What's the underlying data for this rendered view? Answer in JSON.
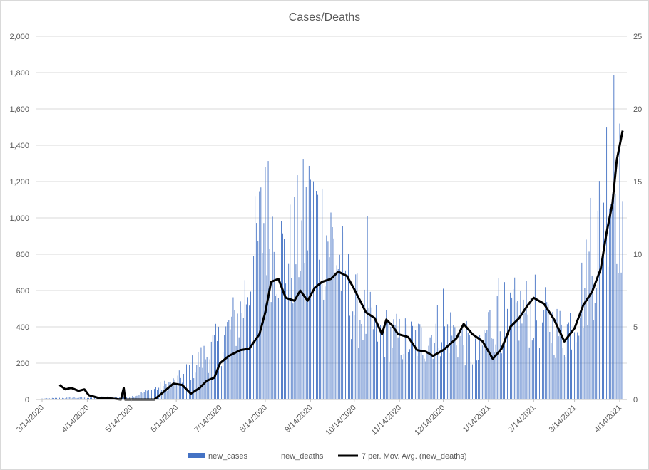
{
  "chart_data": {
    "type": "bar",
    "title": "Cases/Deaths",
    "grid": true,
    "legend_position": "bottom",
    "x_axis": {
      "start_date": "3/14/2020",
      "end_date": "4/14/2021",
      "tick_labels": [
        "3/14/2020",
        "4/14/2020",
        "5/14/2020",
        "6/14/2020",
        "7/14/2020",
        "8/14/2020",
        "9/14/2020",
        "10/14/2020",
        "11/14/2020",
        "12/14/2020",
        "1/14/2021",
        "2/14/2021",
        "3/14/2021",
        "4/14/2021"
      ]
    },
    "y_left": {
      "min": 0,
      "max": 2000,
      "tick_labels": [
        "0",
        "200",
        "400",
        "600",
        "800",
        "1,000",
        "1,200",
        "1,400",
        "1,600",
        "1,800",
        "2,000"
      ]
    },
    "y_right": {
      "min": 0,
      "max": 25,
      "tick_labels": [
        "0",
        "5",
        "10",
        "15",
        "20",
        "25"
      ]
    },
    "series": [
      {
        "name": "new_cases",
        "chart": "bar",
        "axis": "left",
        "color": "#4472c4",
        "anchors": [
          {
            "x": "3/14/2020",
            "y": 5
          },
          {
            "x": "4/14/2020",
            "y": 12
          },
          {
            "x": "5/14/2020",
            "y": 15
          },
          {
            "x": "6/14/2020",
            "y": 100
          },
          {
            "x": "7/14/2020",
            "y": 320
          },
          {
            "x": "7/28/2020",
            "y": 480
          },
          {
            "x": "8/14/2020",
            "y": 1050
          },
          {
            "x": "8/28/2020",
            "y": 750
          },
          {
            "x": "9/14/2020",
            "y": 1050
          },
          {
            "x": "9/28/2020",
            "y": 900
          },
          {
            "x": "10/14/2020",
            "y": 520
          },
          {
            "x": "10/28/2020",
            "y": 400
          },
          {
            "x": "11/14/2020",
            "y": 340
          },
          {
            "x": "12/1/2020",
            "y": 330
          },
          {
            "x": "12/14/2020",
            "y": 420
          },
          {
            "x": "12/28/2020",
            "y": 330
          },
          {
            "x": "1/7/2021",
            "y": 230
          },
          {
            "x": "1/14/2021",
            "y": 420
          },
          {
            "x": "1/28/2021",
            "y": 480
          },
          {
            "x": "2/14/2021",
            "y": 500
          },
          {
            "x": "3/7/2021",
            "y": 360
          },
          {
            "x": "3/14/2021",
            "y": 480
          },
          {
            "x": "3/28/2021",
            "y": 800
          },
          {
            "x": "4/7/2021",
            "y": 1350
          },
          {
            "x": "4/16/2021",
            "y": 1100
          }
        ],
        "peaks": [
          {
            "x": "8/14/2020",
            "y": 1280
          },
          {
            "x": "9/14/2020",
            "y": 1210
          },
          {
            "x": "10/23/2020",
            "y": 1010
          },
          {
            "x": "12/14/2020",
            "y": 610
          },
          {
            "x": "1/21/2021",
            "y": 670
          },
          {
            "x": "3/25/2021",
            "y": 1110
          },
          {
            "x": "4/10/2021",
            "y": 1785
          }
        ]
      },
      {
        "name": "new_deaths",
        "chart": "bar",
        "axis": "right",
        "color": "#ffffff"
      },
      {
        "name": "7 per. Mov. Avg. (new_deaths)",
        "chart": "line",
        "axis": "right",
        "color": "#000000",
        "points": [
          {
            "x": "3/26/2020",
            "y": 1.0
          },
          {
            "x": "3/30/2020",
            "y": 0.7
          },
          {
            "x": "4/3/2020",
            "y": 0.8
          },
          {
            "x": "4/8/2020",
            "y": 0.6
          },
          {
            "x": "4/12/2020",
            "y": 0.7
          },
          {
            "x": "4/15/2020",
            "y": 0.3
          },
          {
            "x": "4/22/2020",
            "y": 0.1
          },
          {
            "x": "4/28/2020",
            "y": 0.1
          },
          {
            "x": "5/7/2020",
            "y": 0.0
          },
          {
            "x": "5/9/2020",
            "y": 0.8
          },
          {
            "x": "5/10/2020",
            "y": 0.0
          },
          {
            "x": "5/30/2020",
            "y": 0.0
          },
          {
            "x": "6/5/2020",
            "y": 0.5
          },
          {
            "x": "6/12/2020",
            "y": 1.1
          },
          {
            "x": "6/18/2020",
            "y": 1.0
          },
          {
            "x": "6/24/2020",
            "y": 0.4
          },
          {
            "x": "6/30/2020",
            "y": 0.8
          },
          {
            "x": "7/5/2020",
            "y": 1.3
          },
          {
            "x": "7/10/2020",
            "y": 1.5
          },
          {
            "x": "7/14/2020",
            "y": 2.5
          },
          {
            "x": "7/20/2020",
            "y": 3.0
          },
          {
            "x": "7/28/2020",
            "y": 3.4
          },
          {
            "x": "8/3/2020",
            "y": 3.5
          },
          {
            "x": "8/10/2020",
            "y": 4.5
          },
          {
            "x": "8/14/2020",
            "y": 6.0
          },
          {
            "x": "8/18/2020",
            "y": 8.1
          },
          {
            "x": "8/23/2020",
            "y": 8.3
          },
          {
            "x": "8/28/2020",
            "y": 7.0
          },
          {
            "x": "9/3/2020",
            "y": 6.8
          },
          {
            "x": "9/7/2020",
            "y": 7.5
          },
          {
            "x": "9/12/2020",
            "y": 6.8
          },
          {
            "x": "9/17/2020",
            "y": 7.7
          },
          {
            "x": "9/22/2020",
            "y": 8.1
          },
          {
            "x": "9/28/2020",
            "y": 8.3
          },
          {
            "x": "10/3/2020",
            "y": 8.8
          },
          {
            "x": "10/9/2020",
            "y": 8.5
          },
          {
            "x": "10/14/2020",
            "y": 7.6
          },
          {
            "x": "10/22/2020",
            "y": 6.0
          },
          {
            "x": "10/28/2020",
            "y": 5.6
          },
          {
            "x": "11/2/2020",
            "y": 4.5
          },
          {
            "x": "11/5/2020",
            "y": 5.5
          },
          {
            "x": "11/9/2020",
            "y": 5.1
          },
          {
            "x": "11/13/2020",
            "y": 4.5
          },
          {
            "x": "11/20/2020",
            "y": 4.3
          },
          {
            "x": "11/26/2020",
            "y": 3.4
          },
          {
            "x": "12/2/2020",
            "y": 3.3
          },
          {
            "x": "12/7/2020",
            "y": 3.0
          },
          {
            "x": "12/14/2020",
            "y": 3.4
          },
          {
            "x": "12/23/2020",
            "y": 4.2
          },
          {
            "x": "12/28/2020",
            "y": 5.2
          },
          {
            "x": "1/3/2021",
            "y": 4.5
          },
          {
            "x": "1/10/2021",
            "y": 4.0
          },
          {
            "x": "1/17/2021",
            "y": 2.8
          },
          {
            "x": "1/23/2021",
            "y": 3.5
          },
          {
            "x": "1/29/2021",
            "y": 5.0
          },
          {
            "x": "2/4/2021",
            "y": 5.6
          },
          {
            "x": "2/10/2021",
            "y": 6.5
          },
          {
            "x": "2/14/2021",
            "y": 7.0
          },
          {
            "x": "2/21/2021",
            "y": 6.6
          },
          {
            "x": "2/28/2021",
            "y": 5.5
          },
          {
            "x": "3/7/2021",
            "y": 4.0
          },
          {
            "x": "3/14/2021",
            "y": 4.9
          },
          {
            "x": "3/20/2021",
            "y": 6.5
          },
          {
            "x": "3/26/2021",
            "y": 7.4
          },
          {
            "x": "4/1/2021",
            "y": 9.0
          },
          {
            "x": "4/5/2021",
            "y": 11.5
          },
          {
            "x": "4/9/2021",
            "y": 13.5
          },
          {
            "x": "4/12/2021",
            "y": 16.5
          },
          {
            "x": "4/14/2021",
            "y": 17.5
          },
          {
            "x": "4/16/2021",
            "y": 18.5
          }
        ]
      }
    ]
  }
}
